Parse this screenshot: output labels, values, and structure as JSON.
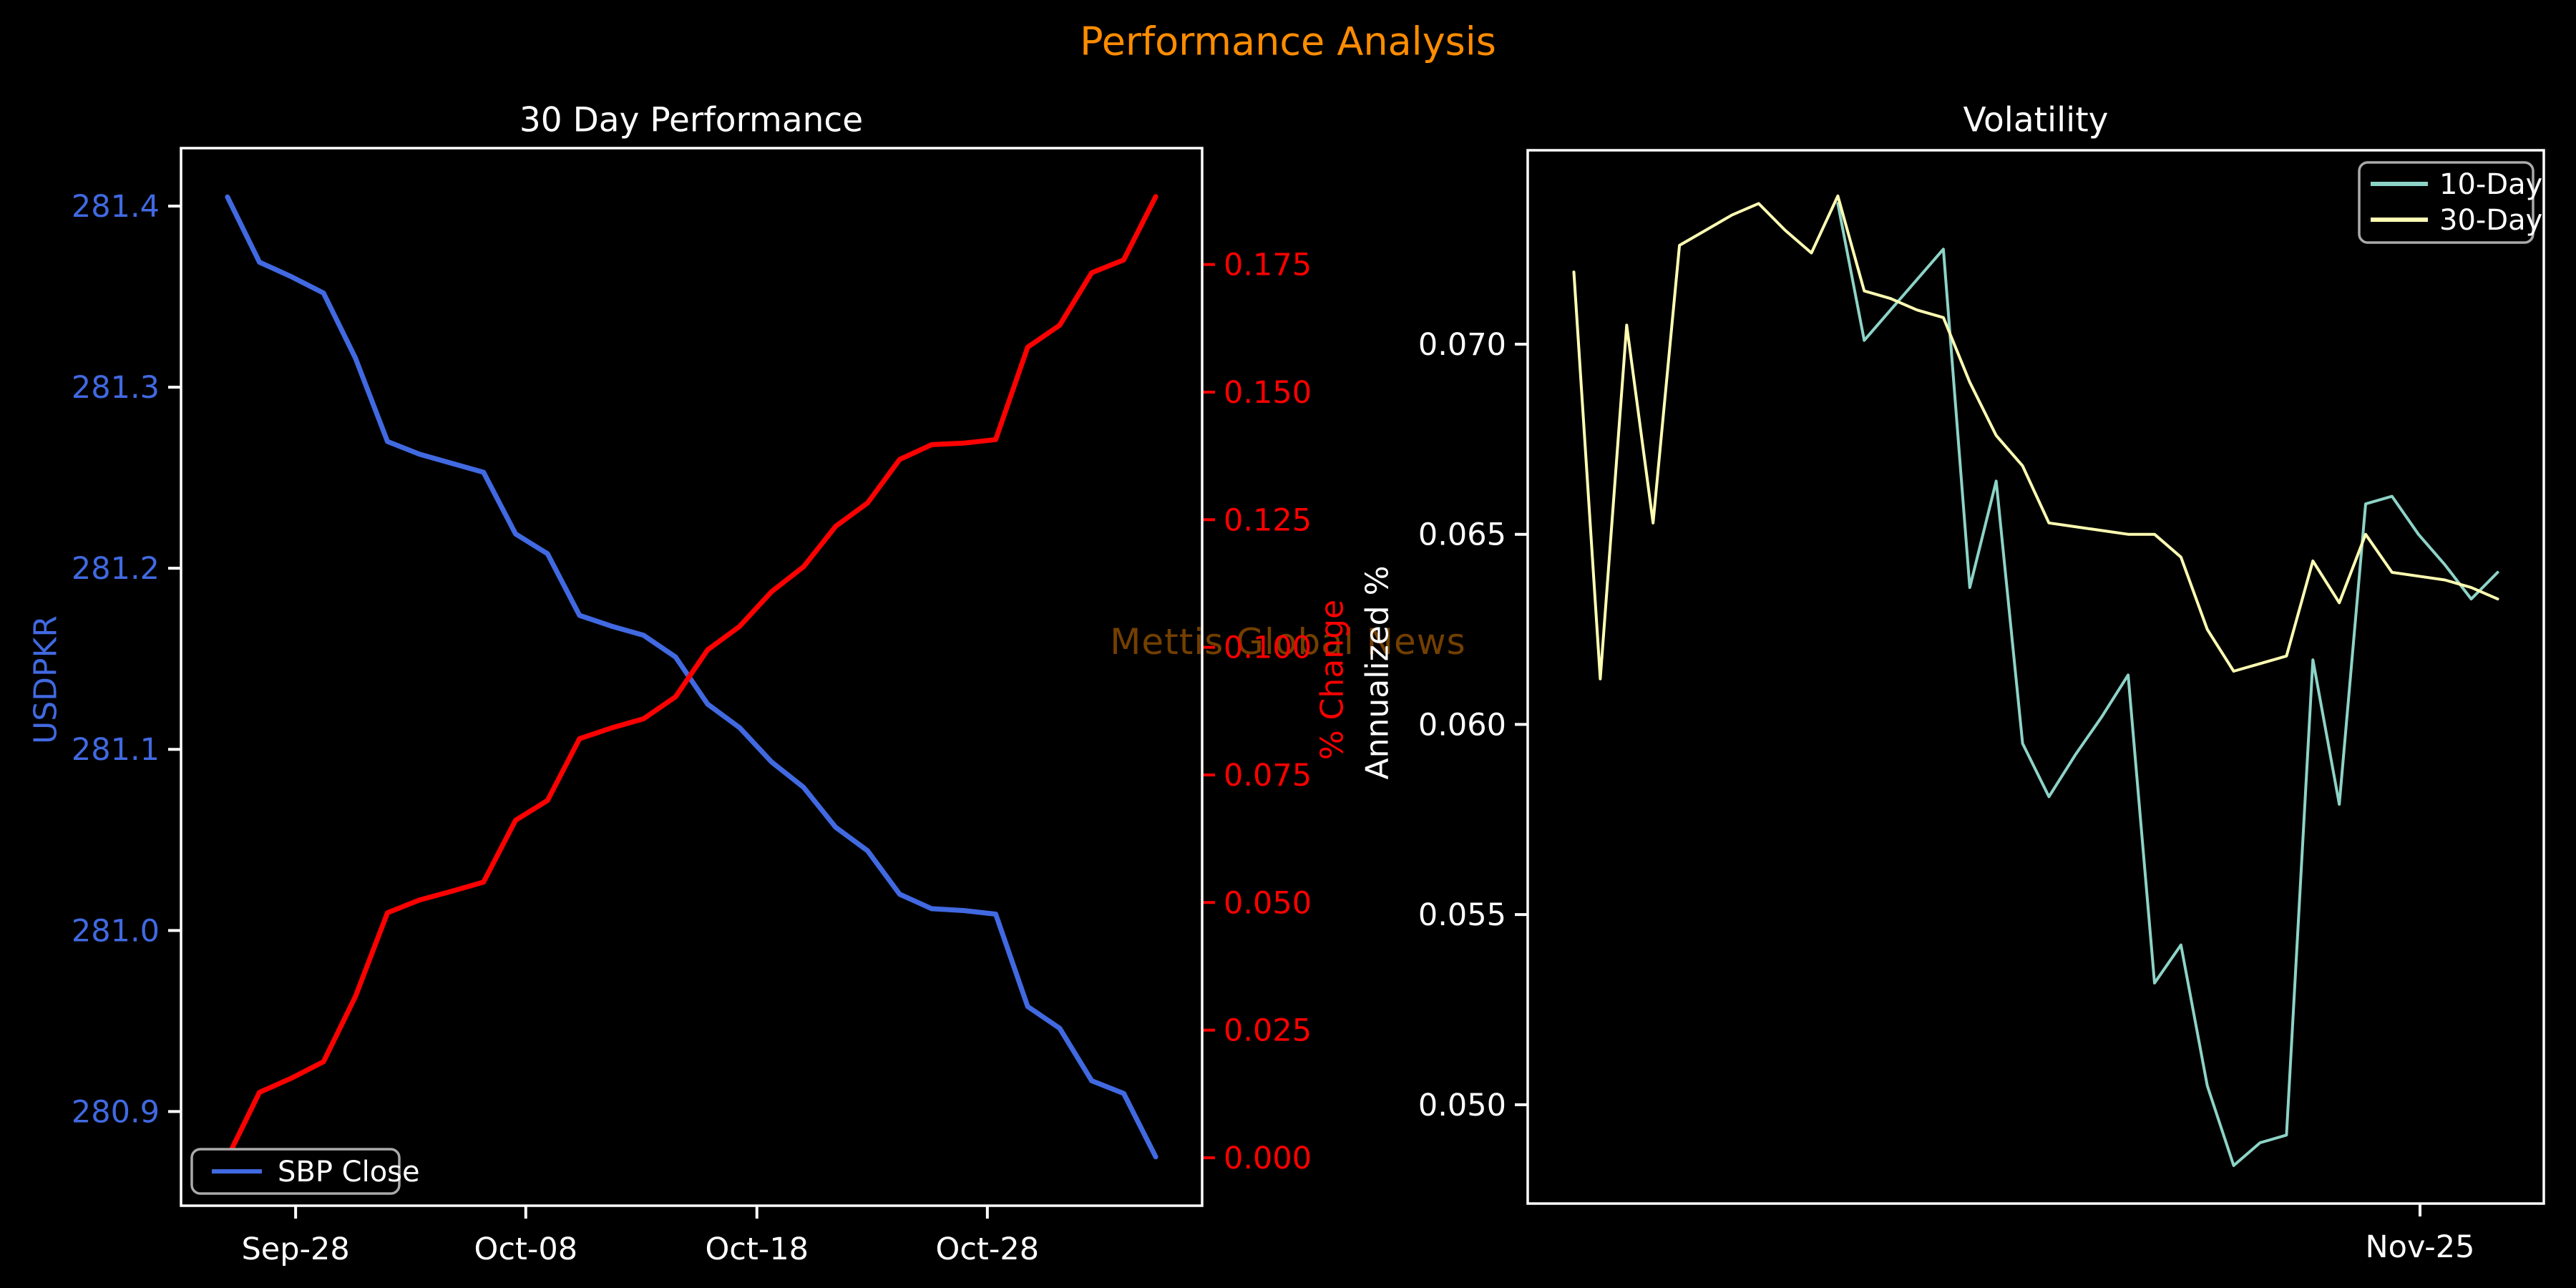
{
  "page": {
    "suptitle": "Performance Analysis",
    "suptitle_color": "#ff8c00",
    "watermark": "Mettis Global News",
    "watermark_color": "rgba(255,140,0,0.45)",
    "background": "#000000",
    "spine_color": "#ffffff",
    "tick_text_color": "#ffffff"
  },
  "chart_data": [
    {
      "type": "line",
      "title": "30 Day Performance",
      "ylabel_left": "USDPKR",
      "ylabel_right": "% Change",
      "left_axis_color": "#4169e1",
      "right_axis_color": "#ff0000",
      "left_tick_mark_color": "#ffffff",
      "right_tick_mark_color": "#ff0000",
      "x_tick_labels": [
        "Sep-28",
        "Oct-08",
        "Oct-18",
        "Oct-28"
      ],
      "x_tick_index": [
        2.13,
        9.32,
        16.54,
        23.74
      ],
      "ylim_left": [
        280.848,
        281.432
      ],
      "ylim_right": [
        -0.0094,
        0.1978
      ],
      "y_ticks_left": [
        280.9,
        281.0,
        281.1,
        281.2,
        281.3,
        281.4
      ],
      "y_decimals_left": 1,
      "y_ticks_right": [
        0.0,
        0.025,
        0.05,
        0.075,
        0.1,
        0.125,
        0.15,
        0.175
      ],
      "y_decimals_right": 3,
      "grid": false,
      "legend": {
        "position": "lower-left",
        "entries": [
          {
            "label": "SBP Close",
            "color": "#4169e1"
          }
        ]
      },
      "series": [
        {
          "name": "SBP Close",
          "axis": "left",
          "color": "#4169e1",
          "width": 7,
          "values": [
            281.405,
            281.369,
            281.361,
            281.352,
            281.316,
            281.27,
            281.263,
            281.258,
            281.253,
            281.219,
            281.208,
            281.174,
            281.168,
            281.163,
            281.151,
            281.125,
            281.112,
            281.093,
            281.079,
            281.057,
            281.044,
            281.02,
            281.012,
            281.011,
            281.009,
            280.958,
            280.946,
            280.917,
            280.91,
            280.875
          ]
        },
        {
          "name": "% Change",
          "axis": "right",
          "color": "#ff0000",
          "width": 7,
          "values": [
            0.0,
            0.0128,
            0.0156,
            0.0188,
            0.0316,
            0.048,
            0.0505,
            0.0522,
            0.054,
            0.0661,
            0.07,
            0.0821,
            0.0842,
            0.086,
            0.0903,
            0.0995,
            0.1041,
            0.1109,
            0.1158,
            0.1237,
            0.1283,
            0.1368,
            0.1397,
            0.14,
            0.1407,
            0.1588,
            0.1631,
            0.1734,
            0.1759,
            0.1883
          ]
        }
      ]
    },
    {
      "type": "line",
      "title": "Volatility",
      "ylabel_left": "Annualized %",
      "left_axis_color": "#ffffff",
      "left_tick_mark_color": "#ffffff",
      "x_tick_labels": [
        "Nov-25"
      ],
      "x_tick_index": [
        32.06
      ],
      "ylim_left": [
        0.0474,
        0.0751
      ],
      "y_ticks_left": [
        0.05,
        0.055,
        0.06,
        0.065,
        0.07
      ],
      "y_decimals_left": 3,
      "grid": false,
      "legend": {
        "position": "upper-right",
        "entries": [
          {
            "label": "10-Day",
            "color": "#8dd3c7"
          },
          {
            "label": "30-Day",
            "color": "#ffffb3"
          }
        ]
      },
      "series": [
        {
          "name": "10-Day",
          "axis": "left",
          "color": "#8dd3c7",
          "width": 4,
          "start_index": 10,
          "values": [
            0.0737,
            0.0701,
            0.0709,
            0.0717,
            0.0725,
            0.0636,
            0.0664,
            0.0595,
            0.0581,
            0.0592,
            0.0602,
            0.0613,
            0.0532,
            0.0542,
            0.0505,
            0.0484,
            0.049,
            0.0492,
            0.0617,
            0.0579,
            0.0658,
            0.066,
            0.065,
            0.0642,
            0.0633,
            0.064
          ]
        },
        {
          "name": "30-Day",
          "axis": "left",
          "color": "#ffffb3",
          "width": 4,
          "values": [
            0.0719,
            0.0612,
            0.0705,
            0.0653,
            0.0726,
            0.073,
            0.0734,
            0.0737,
            0.073,
            0.0724,
            0.0739,
            0.0714,
            0.0712,
            0.0709,
            0.0707,
            0.069,
            0.0676,
            0.0668,
            0.0653,
            0.0652,
            0.0651,
            0.065,
            0.065,
            0.0644,
            0.0625,
            0.0614,
            0.0616,
            0.0618,
            0.0643,
            0.0632,
            0.065,
            0.064,
            0.0639,
            0.0638,
            0.0636,
            0.0633
          ]
        }
      ]
    }
  ]
}
